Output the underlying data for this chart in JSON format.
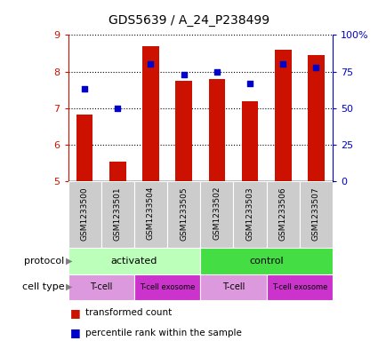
{
  "title": "GDS5639 / A_24_P238499",
  "samples": [
    "GSM1233500",
    "GSM1233501",
    "GSM1233504",
    "GSM1233505",
    "GSM1233502",
    "GSM1233503",
    "GSM1233506",
    "GSM1233507"
  ],
  "red_values": [
    6.82,
    5.55,
    8.7,
    7.75,
    7.8,
    7.2,
    8.6,
    8.45
  ],
  "blue_values": [
    63,
    50,
    80,
    73,
    75,
    67,
    80,
    78
  ],
  "y_min": 5,
  "y_max": 9,
  "y_ticks": [
    5,
    6,
    7,
    8,
    9
  ],
  "y2_ticks": [
    0,
    25,
    50,
    75,
    100
  ],
  "bar_color": "#cc1100",
  "dot_color": "#0000cc",
  "protocol_activated": "activated",
  "protocol_control": "control",
  "protocol_color_activated": "#bbffbb",
  "protocol_color_control": "#44dd44",
  "cell_type_tcell_color": "#dd99dd",
  "cell_type_exosome_color": "#cc33cc",
  "cell_label_tcell": "T-cell",
  "cell_label_exosome": "T-cell exosome",
  "protocol_row_label": "protocol",
  "cell_type_row_label": "cell type",
  "legend_red": "transformed count",
  "legend_blue": "percentile rank within the sample",
  "plot_bg": "#ffffff",
  "label_area_bg": "#cccccc"
}
